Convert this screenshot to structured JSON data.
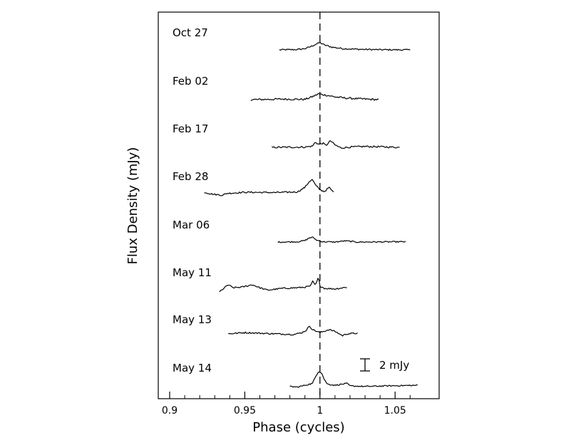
{
  "chart_data": {
    "type": "line",
    "xlabel": "Phase (cycles)",
    "ylabel": "Flux Density (mJy)",
    "xlim": [
      0.888,
      1.07
    ],
    "x_ticks": [
      "0.9",
      "0.95",
      "1",
      "1.05"
    ],
    "x_tick_values": [
      0.9,
      0.95,
      1.0,
      1.05
    ],
    "reference_line": {
      "x": 1.0,
      "style": "dashed"
    },
    "scale_bar": {
      "label": "2 mJy",
      "value_mjy": 2
    },
    "series": [
      {
        "name": "Oct 27",
        "x0": 0.973,
        "x1": 1.06,
        "profile": [
          [
            0.973,
            0
          ],
          [
            0.985,
            0.05
          ],
          [
            0.99,
            0.2
          ],
          [
            0.994,
            0.55
          ],
          [
            0.997,
            0.9
          ],
          [
            1.0,
            1.2
          ],
          [
            1.003,
            0.8
          ],
          [
            1.008,
            0.45
          ],
          [
            1.015,
            0.2
          ],
          [
            1.025,
            0.1
          ],
          [
            1.04,
            0.02
          ],
          [
            1.06,
            0
          ]
        ],
        "noise": 0.12
      },
      {
        "name": "Feb 02",
        "x0": 0.954,
        "x1": 1.039,
        "profile": [
          [
            0.954,
            0
          ],
          [
            0.975,
            0.1
          ],
          [
            0.99,
            0.05
          ],
          [
            0.995,
            0.5
          ],
          [
            0.999,
            0.95
          ],
          [
            1.004,
            0.75
          ],
          [
            1.01,
            0.45
          ],
          [
            1.018,
            0.25
          ],
          [
            1.03,
            0.1
          ],
          [
            1.039,
            0
          ]
        ],
        "noise": 0.15
      },
      {
        "name": "Feb 17",
        "x0": 0.968,
        "x1": 1.053,
        "profile": [
          [
            0.968,
            0
          ],
          [
            0.99,
            0.05
          ],
          [
            0.995,
            0.2
          ],
          [
            0.997,
            0.9
          ],
          [
            0.999,
            0.5
          ],
          [
            1.002,
            0.7
          ],
          [
            1.004,
            0.3
          ],
          [
            1.007,
            1.1
          ],
          [
            1.01,
            0.4
          ],
          [
            1.014,
            -0.1
          ],
          [
            1.02,
            0.05
          ],
          [
            1.03,
            0.15
          ],
          [
            1.04,
            0.1
          ],
          [
            1.053,
            0
          ]
        ],
        "noise": 0.14
      },
      {
        "name": "Feb 28",
        "x0": 0.923,
        "x1": 1.009,
        "profile": [
          [
            0.923,
            0
          ],
          [
            0.928,
            -0.3
          ],
          [
            0.935,
            -0.5
          ],
          [
            0.938,
            -0.2
          ],
          [
            0.95,
            0
          ],
          [
            0.97,
            -0.05
          ],
          [
            0.985,
            0.05
          ],
          [
            0.99,
            0.8
          ],
          [
            0.993,
            1.8
          ],
          [
            0.995,
            2.1
          ],
          [
            0.997,
            1.2
          ],
          [
            1.0,
            0.4
          ],
          [
            1.003,
            0.1
          ],
          [
            1.006,
            0.8
          ],
          [
            1.009,
            0
          ]
        ],
        "noise": 0.12
      },
      {
        "name": "Mar 06",
        "x0": 0.972,
        "x1": 1.057,
        "profile": [
          [
            0.972,
            0
          ],
          [
            0.985,
            0.05
          ],
          [
            0.99,
            0.25
          ],
          [
            0.993,
            0.7
          ],
          [
            0.995,
            0.8
          ],
          [
            0.998,
            0.3
          ],
          [
            1.002,
            0.05
          ],
          [
            1.01,
            0
          ],
          [
            1.017,
            0.2
          ],
          [
            1.025,
            0
          ],
          [
            1.057,
            0.05
          ]
        ],
        "noise": 0.1
      },
      {
        "name": "May 11",
        "x0": 0.933,
        "x1": 1.018,
        "profile": [
          [
            0.933,
            -0.6
          ],
          [
            0.936,
            0
          ],
          [
            0.939,
            0.6
          ],
          [
            0.942,
            0.1
          ],
          [
            0.948,
            0.2
          ],
          [
            0.955,
            0.6
          ],
          [
            0.96,
            0.1
          ],
          [
            0.965,
            -0.3
          ],
          [
            0.975,
            0
          ],
          [
            0.985,
            0.1
          ],
          [
            0.99,
            0.2
          ],
          [
            0.994,
            0.4
          ],
          [
            0.995,
            1.2
          ],
          [
            0.997,
            0.5
          ],
          [
            0.999,
            1.8
          ],
          [
            1.0,
            0.4
          ],
          [
            1.003,
            0
          ],
          [
            1.01,
            -0.1
          ],
          [
            1.018,
            0.2
          ]
        ],
        "noise": 0.12
      },
      {
        "name": "May 13",
        "x0": 0.939,
        "x1": 1.025,
        "profile": [
          [
            0.939,
            -0.1
          ],
          [
            0.95,
            0.1
          ],
          [
            0.96,
            0
          ],
          [
            0.97,
            -0.1
          ],
          [
            0.983,
            -0.2
          ],
          [
            0.988,
            0.1
          ],
          [
            0.991,
            0.5
          ],
          [
            0.993,
            1.2
          ],
          [
            0.995,
            0.6
          ],
          [
            1.0,
            0.1
          ],
          [
            1.006,
            0.6
          ],
          [
            1.01,
            0.3
          ],
          [
            1.015,
            -0.4
          ],
          [
            1.018,
            -0.1
          ],
          [
            1.025,
            0
          ]
        ],
        "noise": 0.12
      },
      {
        "name": "May 14",
        "x0": 0.98,
        "x1": 1.065,
        "profile": [
          [
            0.98,
            -0.1
          ],
          [
            0.985,
            -0.2
          ],
          [
            0.99,
            0.1
          ],
          [
            0.995,
            0.4
          ],
          [
            0.997,
            1.5
          ],
          [
            0.999,
            2.4
          ],
          [
            1.001,
            2.2
          ],
          [
            1.003,
            1.0
          ],
          [
            1.005,
            0.3
          ],
          [
            1.01,
            0.1
          ],
          [
            1.018,
            0.4
          ],
          [
            1.02,
            0
          ],
          [
            1.03,
            -0.1
          ],
          [
            1.045,
            0
          ],
          [
            1.065,
            0.1
          ]
        ],
        "noise": 0.1
      }
    ]
  }
}
